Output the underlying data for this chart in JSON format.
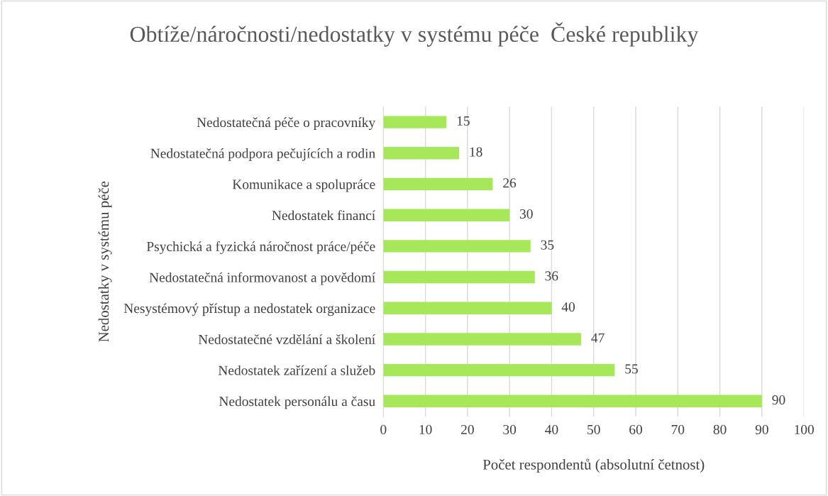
{
  "chart_data": {
    "type": "bar",
    "orientation": "horizontal",
    "title": "Obtíže/náročnosti/nedostatky v systému péče  České republiky",
    "categories": [
      "Nedostatečná péče o pracovníky",
      "Nedostatečná podpora pečujících a rodin",
      "Komunikace a spolupráce",
      "Nedostatek financí",
      "Psychická a fyzická náročnost práce/péče",
      "Nedostatečná informovanost a povědomí",
      "Nesystémový přístup a nedostatek organizace",
      "Nedostatečné vzdělání a školení",
      "Nedostatek zařízení a služeb",
      "Nedostatek personálu a času"
    ],
    "values": [
      15,
      18,
      26,
      30,
      35,
      36,
      40,
      47,
      55,
      90
    ],
    "color": "#a6e85a",
    "xlim": [
      0,
      100
    ],
    "xticks": [
      0,
      10,
      20,
      30,
      40,
      50,
      60,
      70,
      80,
      90,
      100
    ],
    "xlabel": "Počet respondentů (absolutní četnost)",
    "ylabel": "Nedostatky v systému péče",
    "grid": "x",
    "data_labels": true
  }
}
